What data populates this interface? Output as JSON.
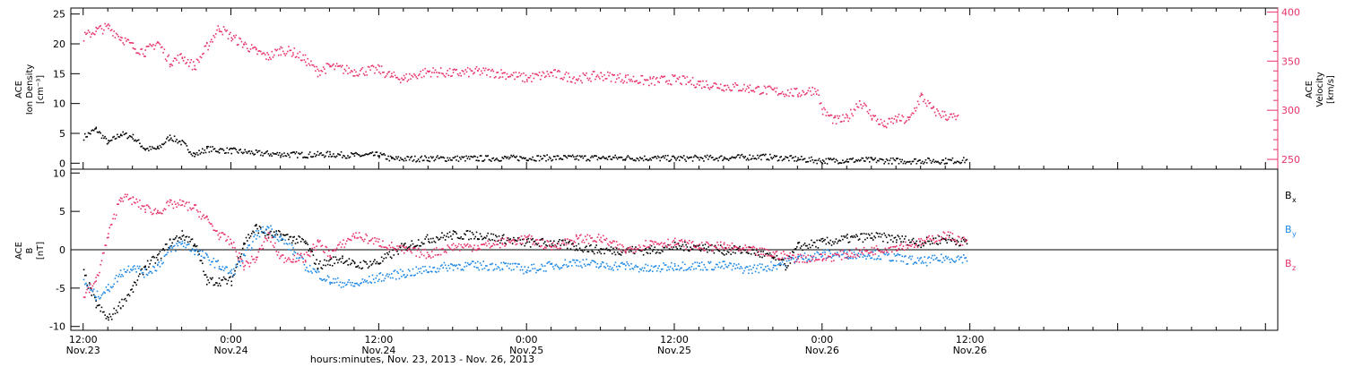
{
  "colors": {
    "black": "#000000",
    "pink": "#e8336a",
    "blue": "#1e88e5"
  },
  "x_axis": {
    "title": "hours:minutes, Nov. 23, 2013 - Nov. 26, 2013",
    "range_hours": [
      -1,
      97
    ],
    "ticks": [
      {
        "hour": 0,
        "time": "12:00",
        "date": "Nov.23"
      },
      {
        "hour": 12,
        "time": "0:00",
        "date": "Nov.24"
      },
      {
        "hour": 24,
        "time": "12:00",
        "date": "Nov.24"
      },
      {
        "hour": 36,
        "time": "0:00",
        "date": "Nov.25"
      },
      {
        "hour": 48,
        "time": "12:00",
        "date": "Nov.25"
      },
      {
        "hour": 60,
        "time": "0:00",
        "date": "Nov.26"
      },
      {
        "hour": 72,
        "time": "12:00",
        "date": "Nov.26"
      }
    ]
  },
  "chart_data": [
    {
      "type": "scatter",
      "panel": "top",
      "ylabel_left": [
        "ACE",
        "Ion Density",
        "[cm⁻³]"
      ],
      "ylabel_right": [
        "ACE",
        "Velocity",
        "[km/s]"
      ],
      "ylim_left": [
        -1,
        26
      ],
      "yticks_left": [
        0,
        5,
        10,
        15,
        20,
        25
      ],
      "ylim_right": [
        240,
        404
      ],
      "yticks_right": [
        250,
        300,
        350,
        400
      ],
      "series": [
        {
          "key": "density",
          "color": "black",
          "axis": "left",
          "points": [
            [
              0,
              4.5
            ],
            [
              1,
              5.8
            ],
            [
              2,
              3.5
            ],
            [
              3,
              5
            ],
            [
              4,
              4.5
            ],
            [
              5,
              2.5
            ],
            [
              6,
              2.5
            ],
            [
              7,
              4.5
            ],
            [
              8,
              3.5
            ],
            [
              9,
              1.5
            ],
            [
              10,
              2.5
            ],
            [
              11,
              2.3
            ],
            [
              12,
              2.2
            ],
            [
              14,
              1.8
            ],
            [
              16,
              1.6
            ],
            [
              18,
              1.5
            ],
            [
              20,
              1.6
            ],
            [
              22,
              1.4
            ],
            [
              24,
              1.5
            ],
            [
              25,
              0.8
            ],
            [
              28,
              0.9
            ],
            [
              32,
              0.9
            ],
            [
              36,
              1
            ],
            [
              40,
              1
            ],
            [
              44,
              1
            ],
            [
              48,
              0.9
            ],
            [
              52,
              1
            ],
            [
              55,
              1.2
            ],
            [
              58,
              0.8
            ],
            [
              60,
              0.5
            ],
            [
              62,
              0.6
            ],
            [
              64,
              0.6
            ],
            [
              66,
              0.5
            ],
            [
              68,
              0.5
            ],
            [
              70,
              0.5
            ],
            [
              71.8,
              0.6
            ]
          ]
        },
        {
          "key": "velocity",
          "color": "pink",
          "axis": "right",
          "points": [
            [
              0,
              375
            ],
            [
              1,
              382
            ],
            [
              2,
              385
            ],
            [
              3,
              375
            ],
            [
              4,
              365
            ],
            [
              5,
              360
            ],
            [
              6,
              370
            ],
            [
              7,
              350
            ],
            [
              8,
              355
            ],
            [
              9,
              345
            ],
            [
              10,
              365
            ],
            [
              11,
              385
            ],
            [
              12,
              375
            ],
            [
              13,
              368
            ],
            [
              14,
              360
            ],
            [
              15,
              355
            ],
            [
              16,
              362
            ],
            [
              17,
              360
            ],
            [
              18,
              352
            ],
            [
              19,
              340
            ],
            [
              20,
              345
            ],
            [
              22,
              340
            ],
            [
              24,
              342
            ],
            [
              25,
              335
            ],
            [
              26,
              333
            ],
            [
              28,
              340
            ],
            [
              30,
              338
            ],
            [
              32,
              340
            ],
            [
              34,
              338
            ],
            [
              36,
              333
            ],
            [
              38,
              338
            ],
            [
              40,
              333
            ],
            [
              42,
              336
            ],
            [
              44,
              333
            ],
            [
              46,
              330
            ],
            [
              48,
              332
            ],
            [
              50,
              328
            ],
            [
              52,
              325
            ],
            [
              54,
              323
            ],
            [
              56,
              320
            ],
            [
              58,
              318
            ],
            [
              59.5,
              322
            ],
            [
              60,
              300
            ],
            [
              61,
              290
            ],
            [
              62,
              292
            ],
            [
              63,
              310
            ],
            [
              64,
              295
            ],
            [
              65,
              285
            ],
            [
              66,
              292
            ],
            [
              67,
              290
            ],
            [
              68,
              315
            ],
            [
              69,
              300
            ],
            [
              70,
              295
            ],
            [
              71,
              292
            ]
          ]
        }
      ]
    },
    {
      "type": "scatter",
      "panel": "bottom",
      "ylabel_left": [
        "ACE",
        "B",
        "[nT]"
      ],
      "ylim": [
        -10.5,
        10.5
      ],
      "yticks": [
        -10,
        -5,
        0,
        5,
        10
      ],
      "legend": [
        {
          "text": "B",
          "sub": "x",
          "color": "black"
        },
        {
          "text": "B",
          "sub": "y",
          "color": "blue"
        },
        {
          "text": "B",
          "sub": "z",
          "color": "pink"
        }
      ],
      "series": [
        {
          "key": "Bx",
          "color": "black",
          "points": [
            [
              0,
              -3
            ],
            [
              1,
              -7
            ],
            [
              2,
              -9
            ],
            [
              3,
              -7
            ],
            [
              4,
              -5
            ],
            [
              5,
              -2
            ],
            [
              6,
              -1
            ],
            [
              7,
              1
            ],
            [
              8,
              2
            ],
            [
              9,
              1
            ],
            [
              10,
              -4
            ],
            [
              11,
              -4
            ],
            [
              12,
              -4
            ],
            [
              13,
              1
            ],
            [
              14,
              3
            ],
            [
              15,
              2
            ],
            [
              16,
              2
            ],
            [
              17,
              1.5
            ],
            [
              18,
              1
            ],
            [
              19,
              -2
            ],
            [
              20,
              -1.5
            ],
            [
              21,
              -1
            ],
            [
              22,
              -2
            ],
            [
              24,
              -1.5
            ],
            [
              26,
              0.5
            ],
            [
              28,
              1.5
            ],
            [
              30,
              2
            ],
            [
              32,
              2
            ],
            [
              34,
              1.5
            ],
            [
              36,
              1
            ],
            [
              38,
              1
            ],
            [
              40,
              0.5
            ],
            [
              42,
              0
            ],
            [
              44,
              0
            ],
            [
              46,
              0
            ],
            [
              48,
              0.5
            ],
            [
              50,
              0.5
            ],
            [
              52,
              0
            ],
            [
              54,
              0
            ],
            [
              56,
              -1
            ],
            [
              57,
              -2
            ],
            [
              58,
              0.5
            ],
            [
              60,
              1
            ],
            [
              62,
              1.5
            ],
            [
              64,
              1.8
            ],
            [
              66,
              1.5
            ],
            [
              68,
              1
            ],
            [
              70,
              1.5
            ],
            [
              71.8,
              1
            ]
          ]
        },
        {
          "key": "By",
          "color": "blue",
          "points": [
            [
              0,
              -4
            ],
            [
              1,
              -6
            ],
            [
              2,
              -5
            ],
            [
              3,
              -3
            ],
            [
              4,
              -2
            ],
            [
              5,
              -3
            ],
            [
              6,
              -2
            ],
            [
              7,
              0
            ],
            [
              8,
              1
            ],
            [
              9,
              0
            ],
            [
              10,
              -1
            ],
            [
              11,
              -2
            ],
            [
              12,
              -3
            ],
            [
              13,
              -1
            ],
            [
              14,
              2
            ],
            [
              15,
              3
            ],
            [
              16,
              1.5
            ],
            [
              17,
              0
            ],
            [
              18,
              -2
            ],
            [
              20,
              -4
            ],
            [
              22,
              -4.5
            ],
            [
              24,
              -3.5
            ],
            [
              26,
              -3
            ],
            [
              28,
              -2.5
            ],
            [
              30,
              -2
            ],
            [
              32,
              -2
            ],
            [
              34,
              -2
            ],
            [
              36,
              -2.5
            ],
            [
              38,
              -2
            ],
            [
              40,
              -1.5
            ],
            [
              42,
              -2
            ],
            [
              44,
              -2
            ],
            [
              46,
              -2.5
            ],
            [
              48,
              -2
            ],
            [
              50,
              -2
            ],
            [
              52,
              -2
            ],
            [
              54,
              -2.5
            ],
            [
              56,
              -2
            ],
            [
              58,
              -1
            ],
            [
              60,
              -0.5
            ],
            [
              62,
              -0.5
            ],
            [
              64,
              -0.5
            ],
            [
              66,
              -1
            ],
            [
              68,
              -1.5
            ],
            [
              70,
              -1
            ],
            [
              71.8,
              -1
            ]
          ]
        },
        {
          "key": "Bz",
          "color": "pink",
          "points": [
            [
              0,
              -6
            ],
            [
              1,
              -4
            ],
            [
              2,
              2
            ],
            [
              3,
              7
            ],
            [
              4,
              6.5
            ],
            [
              5,
              5.5
            ],
            [
              6,
              5
            ],
            [
              7,
              6
            ],
            [
              8,
              6
            ],
            [
              9,
              5.5
            ],
            [
              10,
              4
            ],
            [
              11,
              2
            ],
            [
              12,
              1
            ],
            [
              13,
              -2
            ],
            [
              14,
              -1
            ],
            [
              15,
              2
            ],
            [
              16,
              -1
            ],
            [
              17,
              -1
            ],
            [
              18,
              -1
            ],
            [
              19,
              1
            ],
            [
              20,
              -0.5
            ],
            [
              22,
              2
            ],
            [
              24,
              1
            ],
            [
              26,
              0
            ],
            [
              28,
              -0.5
            ],
            [
              30,
              0.5
            ],
            [
              32,
              0.5
            ],
            [
              34,
              1
            ],
            [
              36,
              1.5
            ],
            [
              38,
              0.5
            ],
            [
              40,
              1.5
            ],
            [
              42,
              1.5
            ],
            [
              44,
              0
            ],
            [
              46,
              1
            ],
            [
              48,
              1
            ],
            [
              50,
              0.5
            ],
            [
              52,
              0.5
            ],
            [
              54,
              0
            ],
            [
              56,
              -0.5
            ],
            [
              58,
              -1
            ],
            [
              60,
              -1
            ],
            [
              62,
              -0.5
            ],
            [
              64,
              0
            ],
            [
              66,
              0.5
            ],
            [
              68,
              1
            ],
            [
              70,
              2
            ],
            [
              71.8,
              1
            ]
          ]
        }
      ]
    }
  ]
}
